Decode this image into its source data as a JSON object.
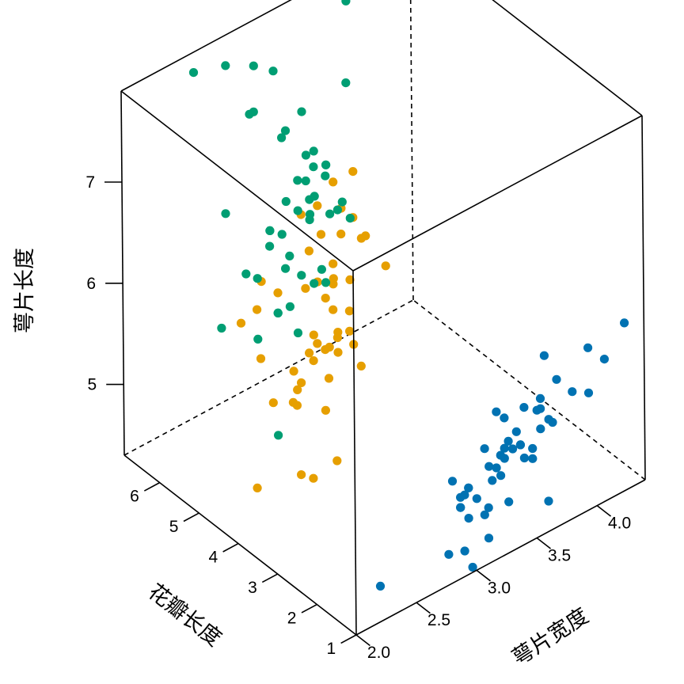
{
  "chart_data": {
    "type": "scatter3d",
    "title": "",
    "xlabel": "萼片宽度",
    "ylabel": "花瓣长度",
    "zlabel": "萼片长度",
    "xlim": [
      2.0,
      4.4
    ],
    "ylim": [
      1.0,
      6.9
    ],
    "zlim": [
      4.3,
      7.9
    ],
    "x_ticks": [
      2.0,
      2.5,
      3.0,
      3.5,
      4.0
    ],
    "x_tick_labels": [
      "2.0",
      "2.5",
      "3.0",
      "3.5",
      "4.0"
    ],
    "y_ticks": [
      1,
      2,
      3,
      4,
      5,
      6
    ],
    "y_tick_labels": [
      "1",
      "2",
      "3",
      "4",
      "5",
      "6"
    ],
    "z_ticks": [
      5,
      6,
      7
    ],
    "z_tick_labels": [
      "5",
      "6",
      "7"
    ],
    "grid": false,
    "box": true,
    "colors": {
      "setosa": "#0072B2",
      "versicolor": "#E69F00",
      "virginica": "#009E73"
    },
    "series": [
      {
        "color": "#0072B2",
        "points": [
          [
            3.5,
            1.4,
            5.1
          ],
          [
            3.0,
            1.4,
            4.9
          ],
          [
            3.2,
            1.3,
            4.7
          ],
          [
            3.1,
            1.5,
            4.6
          ],
          [
            3.6,
            1.4,
            5.0
          ],
          [
            3.9,
            1.7,
            5.4
          ],
          [
            3.4,
            1.4,
            4.6
          ],
          [
            3.4,
            1.5,
            5.0
          ],
          [
            2.9,
            1.4,
            4.4
          ],
          [
            3.1,
            1.5,
            4.9
          ],
          [
            3.7,
            1.5,
            5.4
          ],
          [
            3.4,
            1.6,
            4.8
          ],
          [
            3.0,
            1.4,
            4.8
          ],
          [
            3.0,
            1.1,
            4.3
          ],
          [
            4.0,
            1.2,
            5.8
          ],
          [
            4.4,
            1.5,
            5.7
          ],
          [
            3.9,
            1.3,
            5.4
          ],
          [
            3.5,
            1.4,
            5.1
          ],
          [
            3.8,
            1.7,
            5.7
          ],
          [
            3.8,
            1.5,
            5.1
          ],
          [
            3.4,
            1.7,
            5.4
          ],
          [
            3.7,
            1.5,
            5.1
          ],
          [
            3.6,
            1.0,
            4.6
          ],
          [
            3.3,
            1.7,
            5.1
          ],
          [
            3.4,
            1.9,
            4.8
          ],
          [
            3.0,
            1.6,
            5.0
          ],
          [
            3.4,
            1.6,
            5.0
          ],
          [
            3.5,
            1.5,
            5.2
          ],
          [
            3.4,
            1.4,
            5.2
          ],
          [
            3.2,
            1.6,
            4.7
          ],
          [
            3.1,
            1.6,
            4.8
          ],
          [
            3.4,
            1.5,
            5.4
          ],
          [
            4.1,
            1.5,
            5.2
          ],
          [
            4.2,
            1.4,
            5.5
          ],
          [
            3.1,
            1.5,
            4.9
          ],
          [
            3.2,
            1.2,
            5.0
          ],
          [
            3.5,
            1.3,
            5.5
          ],
          [
            3.6,
            1.4,
            4.9
          ],
          [
            3.0,
            1.3,
            4.4
          ],
          [
            3.4,
            1.5,
            5.1
          ],
          [
            3.5,
            1.3,
            5.0
          ],
          [
            2.3,
            1.3,
            4.5
          ],
          [
            3.2,
            1.3,
            4.4
          ],
          [
            3.5,
            1.6,
            5.0
          ],
          [
            3.8,
            1.9,
            5.1
          ],
          [
            3.0,
            1.4,
            4.8
          ],
          [
            3.8,
            1.6,
            5.1
          ],
          [
            3.2,
            1.4,
            4.6
          ],
          [
            3.7,
            1.5,
            5.3
          ],
          [
            3.3,
            1.4,
            5.0
          ]
        ]
      },
      {
        "color": "#E69F00",
        "points": [
          [
            3.2,
            4.7,
            7.0
          ],
          [
            3.2,
            4.5,
            6.4
          ],
          [
            3.1,
            4.9,
            6.9
          ],
          [
            2.3,
            4.0,
            5.5
          ],
          [
            2.8,
            4.6,
            6.5
          ],
          [
            2.8,
            4.5,
            5.7
          ],
          [
            3.3,
            4.7,
            6.3
          ],
          [
            2.4,
            3.3,
            4.9
          ],
          [
            2.9,
            4.6,
            6.6
          ],
          [
            2.7,
            3.9,
            5.2
          ],
          [
            2.0,
            3.5,
            5.0
          ],
          [
            3.0,
            4.2,
            5.9
          ],
          [
            2.2,
            4.0,
            6.0
          ],
          [
            2.9,
            4.7,
            6.1
          ],
          [
            2.9,
            3.6,
            5.6
          ],
          [
            3.1,
            4.4,
            6.7
          ],
          [
            3.0,
            4.5,
            5.6
          ],
          [
            2.7,
            4.1,
            5.8
          ],
          [
            2.2,
            4.5,
            6.2
          ],
          [
            2.5,
            3.9,
            5.6
          ],
          [
            3.2,
            4.8,
            5.9
          ],
          [
            2.8,
            4.0,
            6.1
          ],
          [
            2.5,
            4.9,
            6.3
          ],
          [
            2.8,
            4.7,
            6.1
          ],
          [
            2.9,
            4.3,
            6.4
          ],
          [
            3.0,
            4.4,
            6.6
          ],
          [
            2.8,
            4.8,
            6.8
          ],
          [
            3.0,
            5.0,
            6.7
          ],
          [
            2.9,
            4.5,
            6.0
          ],
          [
            2.6,
            3.5,
            5.7
          ],
          [
            2.4,
            3.8,
            5.5
          ],
          [
            2.4,
            3.7,
            5.5
          ],
          [
            2.7,
            3.9,
            5.8
          ],
          [
            2.7,
            5.1,
            6.0
          ],
          [
            3.0,
            4.5,
            5.4
          ],
          [
            3.4,
            4.5,
            6.0
          ],
          [
            3.1,
            4.7,
            6.7
          ],
          [
            2.3,
            4.4,
            6.3
          ],
          [
            3.0,
            4.1,
            5.6
          ],
          [
            2.5,
            4.0,
            5.5
          ],
          [
            2.6,
            4.4,
            5.5
          ],
          [
            3.0,
            4.6,
            6.1
          ],
          [
            2.6,
            4.0,
            5.8
          ],
          [
            2.3,
            3.3,
            5.0
          ],
          [
            2.7,
            4.2,
            5.6
          ],
          [
            3.0,
            4.2,
            5.7
          ],
          [
            2.9,
            4.2,
            5.7
          ],
          [
            2.9,
            4.3,
            6.2
          ],
          [
            2.5,
            3.0,
            5.1
          ],
          [
            2.8,
            4.1,
            5.7
          ]
        ]
      },
      {
        "color": "#009E73",
        "points": [
          [
            3.3,
            6.0,
            6.3
          ],
          [
            2.7,
            5.1,
            5.8
          ],
          [
            3.0,
            5.9,
            7.1
          ],
          [
            2.9,
            5.6,
            6.3
          ],
          [
            3.0,
            5.8,
            6.5
          ],
          [
            3.0,
            6.6,
            7.6
          ],
          [
            2.5,
            4.5,
            4.9
          ],
          [
            2.9,
            6.3,
            7.3
          ],
          [
            2.5,
            5.8,
            6.7
          ],
          [
            3.6,
            6.1,
            7.2
          ],
          [
            3.2,
            5.1,
            6.5
          ],
          [
            2.7,
            5.3,
            6.4
          ],
          [
            3.0,
            5.5,
            6.8
          ],
          [
            2.5,
            5.0,
            5.7
          ],
          [
            2.8,
            5.1,
            5.8
          ],
          [
            3.2,
            5.3,
            6.4
          ],
          [
            3.0,
            5.5,
            6.5
          ],
          [
            3.8,
            6.7,
            7.7
          ],
          [
            2.6,
            6.9,
            7.7
          ],
          [
            2.2,
            5.0,
            6.0
          ],
          [
            3.2,
            5.7,
            6.9
          ],
          [
            2.8,
            4.9,
            5.6
          ],
          [
            2.8,
            6.7,
            7.7
          ],
          [
            2.7,
            4.9,
            6.3
          ],
          [
            3.3,
            5.7,
            6.7
          ],
          [
            3.2,
            6.0,
            7.2
          ],
          [
            2.8,
            4.8,
            6.2
          ],
          [
            3.0,
            4.9,
            6.1
          ],
          [
            2.8,
            5.6,
            6.4
          ],
          [
            3.0,
            5.8,
            7.2
          ],
          [
            2.8,
            6.1,
            7.4
          ],
          [
            3.8,
            6.4,
            7.9
          ],
          [
            2.8,
            5.6,
            6.4
          ],
          [
            2.8,
            5.1,
            6.3
          ],
          [
            2.6,
            5.6,
            6.1
          ],
          [
            3.0,
            6.1,
            7.7
          ],
          [
            3.4,
            5.6,
            6.3
          ],
          [
            3.1,
            5.5,
            6.4
          ],
          [
            3.0,
            4.8,
            6.0
          ],
          [
            3.1,
            5.4,
            6.9
          ],
          [
            3.1,
            5.6,
            6.7
          ],
          [
            3.1,
            5.1,
            6.9
          ],
          [
            2.7,
            5.1,
            5.8
          ],
          [
            3.2,
            5.9,
            6.8
          ],
          [
            3.3,
            5.7,
            6.7
          ],
          [
            3.0,
            5.2,
            6.7
          ],
          [
            2.5,
            5.0,
            6.3
          ],
          [
            3.0,
            5.2,
            6.5
          ],
          [
            3.4,
            5.4,
            6.2
          ],
          [
            3.0,
            5.1,
            5.9
          ]
        ]
      }
    ]
  }
}
